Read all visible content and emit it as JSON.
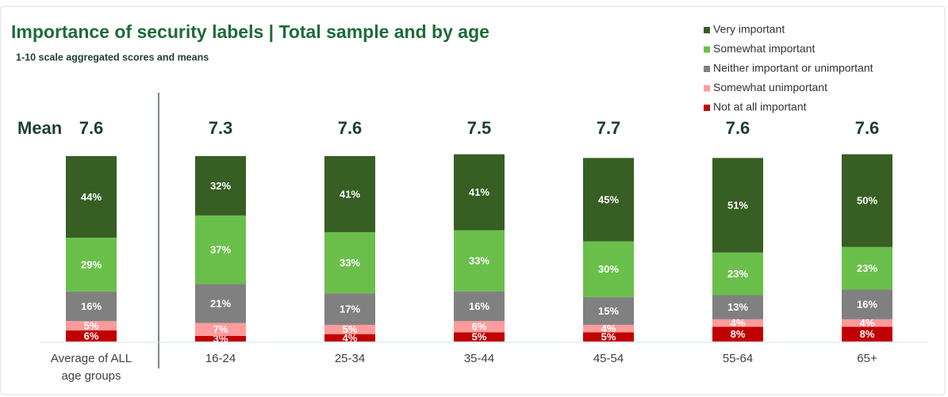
{
  "chart_data": {
    "type": "stacked_bar",
    "title": "Importance of security labels | Total sample and by age",
    "subtitle": "1-10 scale aggregated scores and means",
    "mean_label": "Mean",
    "categories": [
      "Average of ALL age groups",
      "16-24",
      "25-34",
      "35-44",
      "45-54",
      "55-64",
      "65+"
    ],
    "means": [
      7.6,
      7.3,
      7.6,
      7.5,
      7.7,
      7.6,
      7.6
    ],
    "legend": "top-right",
    "series": [
      {
        "name": "Not at all important",
        "color": "#c00000",
        "values": [
          6,
          3,
          4,
          5,
          5,
          8,
          8
        ],
        "value_labels": [
          "6%",
          "3%",
          "4%",
          "5%",
          "5%",
          "8%",
          "8%"
        ]
      },
      {
        "name": "Somewhat unimportant",
        "color": "#ff9b9b",
        "values": [
          5,
          7,
          5,
          6,
          4,
          4,
          4
        ],
        "value_labels": [
          "5%",
          "7%",
          "5%",
          "6%",
          "4%",
          "4%",
          "4%"
        ]
      },
      {
        "name": "Neither important or unimportant",
        "color": "#808080",
        "values": [
          16,
          21,
          17,
          16,
          15,
          13,
          16
        ],
        "value_labels": [
          "16%",
          "21%",
          "17%",
          "16%",
          "15%",
          "13%",
          "16%"
        ]
      },
      {
        "name": "Somewhat important",
        "color": "#6abf4b",
        "values": [
          29,
          37,
          33,
          33,
          30,
          23,
          23
        ],
        "value_labels": [
          "29%",
          "37%",
          "33%",
          "33%",
          "30%",
          "23%",
          "23%"
        ]
      },
      {
        "name": "Very important",
        "color": "#375e23",
        "values": [
          44,
          32,
          41,
          41,
          45,
          51,
          50
        ],
        "value_labels": [
          "44%",
          "32%",
          "41%",
          "41%",
          "45%",
          "51%",
          "50%"
        ]
      }
    ]
  }
}
